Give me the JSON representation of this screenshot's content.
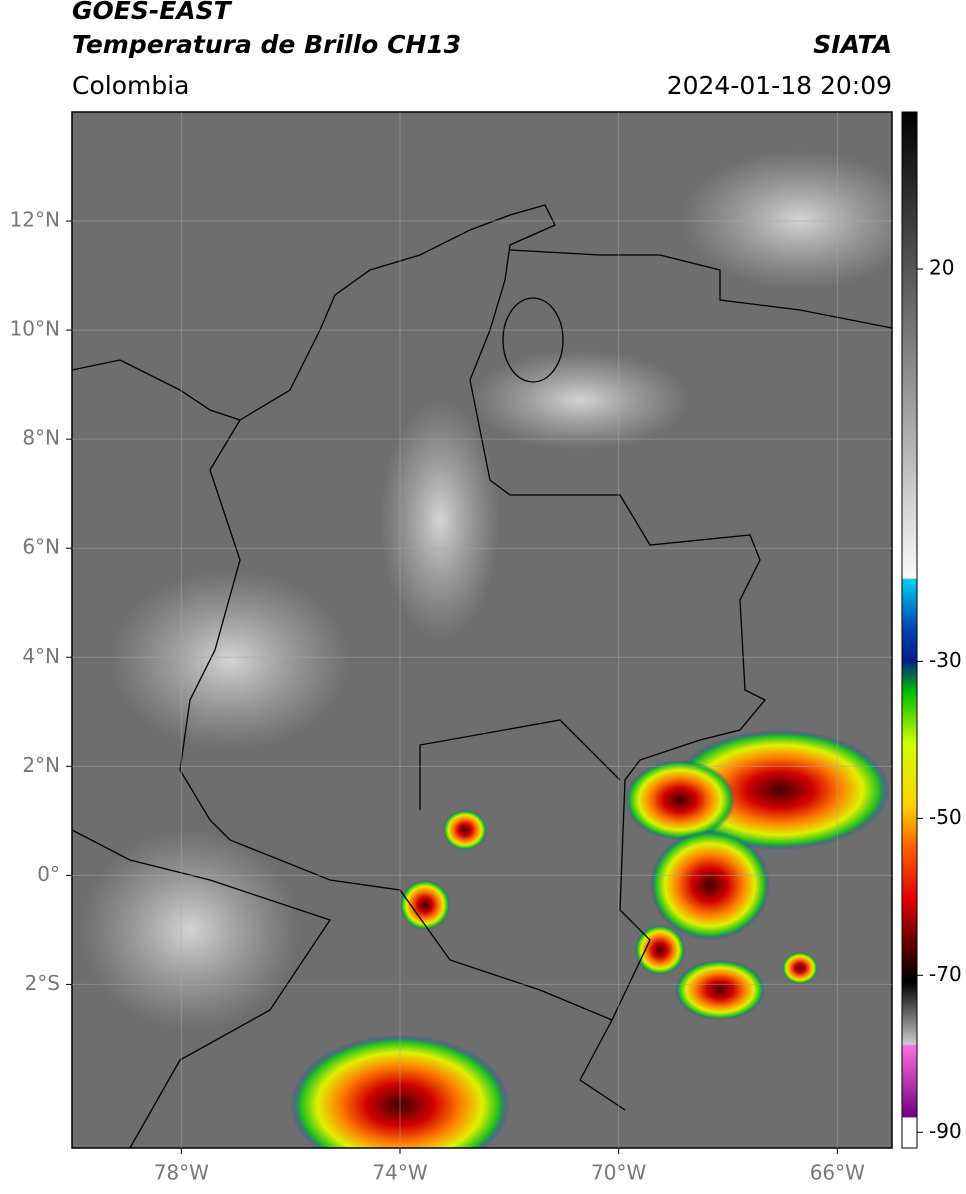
{
  "header": {
    "title": "GOES-EAST",
    "subtitle": "Temperatura de Brillo CH13",
    "source": "SIATA",
    "region": "Colombia",
    "datetime": "2024-01-18 20:09"
  },
  "map": {
    "xlim": [
      -80,
      -65
    ],
    "ylim": [
      -5,
      14
    ],
    "xticks": [
      {
        "value": -78,
        "label": "78°W"
      },
      {
        "value": -74,
        "label": "74°W"
      },
      {
        "value": -70,
        "label": "70°W"
      },
      {
        "value": -66,
        "label": "66°W"
      }
    ],
    "yticks": [
      {
        "value": 12,
        "label": "12°N"
      },
      {
        "value": 10,
        "label": "10°N"
      },
      {
        "value": 8,
        "label": "8°N"
      },
      {
        "value": 6,
        "label": "6°N"
      },
      {
        "value": 4,
        "label": "4°N"
      },
      {
        "value": 2,
        "label": "2°N"
      },
      {
        "value": 0,
        "label": "0°"
      },
      {
        "value": -2,
        "label": "2°S"
      }
    ],
    "grid": true
  },
  "colorbar": {
    "lim": [
      -92,
      40
    ],
    "ticks": [
      20,
      -30,
      -50,
      -70,
      -90
    ]
  }
}
